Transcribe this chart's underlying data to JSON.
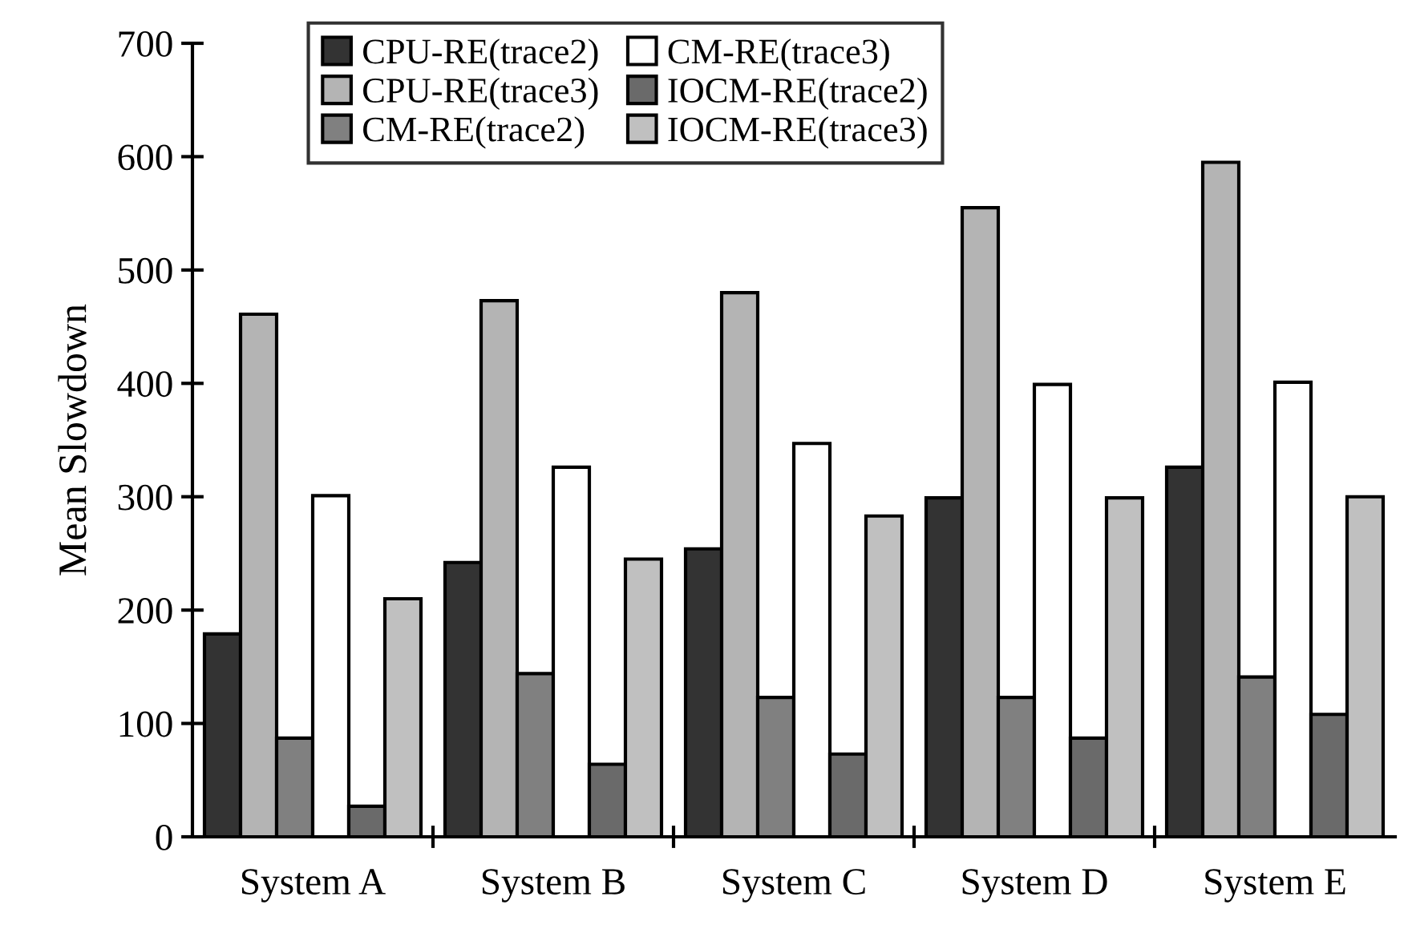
{
  "chart_data": {
    "type": "bar",
    "ylabel": "Mean Slowdown",
    "categories": [
      "System A",
      "System B",
      "System C",
      "System D",
      "System E"
    ],
    "series": [
      {
        "name": "CPU-RE(trace2)",
        "color": "#333333",
        "values": [
          179,
          242,
          254,
          299,
          326
        ]
      },
      {
        "name": "CPU-RE(trace3)",
        "color": "#b4b4b4",
        "values": [
          461,
          473,
          480,
          555,
          595
        ]
      },
      {
        "name": "CM-RE(trace2)",
        "color": "#808080",
        "values": [
          87,
          144,
          123,
          123,
          141
        ]
      },
      {
        "name": "CM-RE(trace3)",
        "color": "#ffffff",
        "values": [
          301,
          326,
          347,
          399,
          401
        ]
      },
      {
        "name": "IOCM-RE(trace2)",
        "color": "#6a6a6a",
        "values": [
          27,
          64,
          73,
          87,
          108
        ]
      },
      {
        "name": "IOCM-RE(trace3)",
        "color": "#c0c0c0",
        "values": [
          210,
          245,
          283,
          299,
          300
        ]
      }
    ],
    "ylim": [
      0,
      700
    ],
    "yticks": [
      0,
      100,
      200,
      300,
      400,
      500,
      600,
      700
    ],
    "grid": false,
    "legend": "top"
  }
}
